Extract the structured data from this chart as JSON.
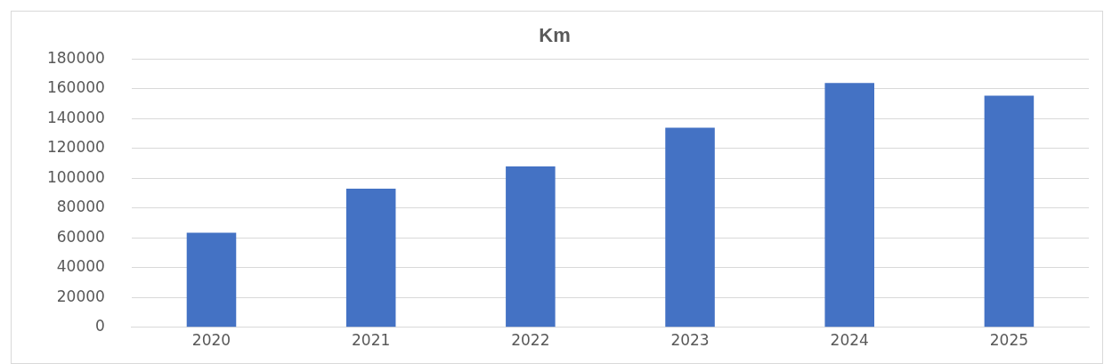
{
  "chart_data": {
    "type": "bar",
    "title": "Km",
    "categories": [
      "2020",
      "2021",
      "2022",
      "2023",
      "2024",
      "2025"
    ],
    "values": [
      63500,
      93000,
      108000,
      134000,
      164000,
      155500
    ],
    "color": "#4472c4",
    "ylim": [
      0,
      180000
    ],
    "yticks": [
      0,
      20000,
      40000,
      60000,
      80000,
      100000,
      120000,
      140000,
      160000,
      180000
    ],
    "grid": "y",
    "legend": false
  }
}
